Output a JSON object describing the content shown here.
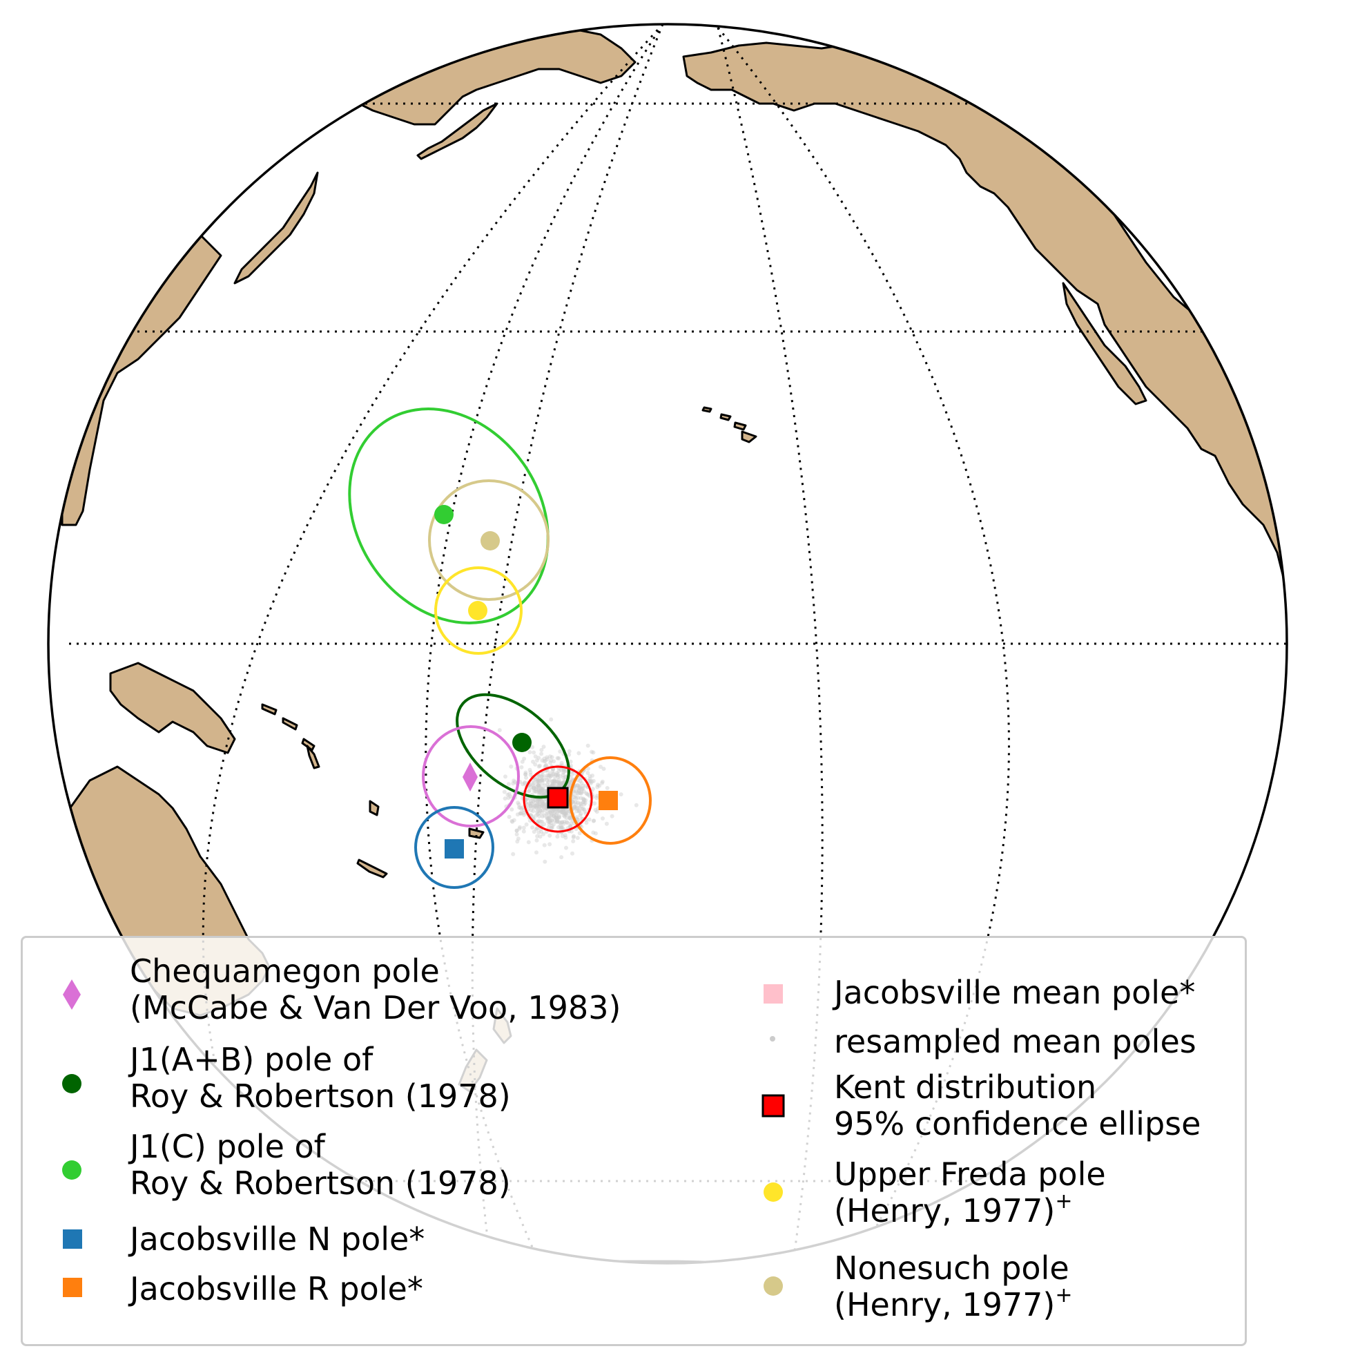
{
  "map": {
    "projection": "orthographic",
    "land_color": "#d2b48c",
    "coast_color": "#000000",
    "gridline_style": "dotted"
  },
  "poles": [
    {
      "name": "Chequamegon pole",
      "marker": "diamond",
      "color": "#da70d6",
      "lon": -158,
      "lat": -27,
      "a95": 8
    },
    {
      "name": "J1(A+B) pole",
      "marker": "circle",
      "color": "#006400",
      "lon": -153,
      "lat": -22
    },
    {
      "name": "J1(C) pole",
      "marker": "circle",
      "color": "#32cd32",
      "lon": -162,
      "lat": 9
    },
    {
      "name": "Jacobsville N pole",
      "marker": "square",
      "color": "#1f77b4",
      "lon": -159,
      "lat": -35,
      "a95": 7
    },
    {
      "name": "Jacobsville R pole",
      "marker": "square",
      "color": "#ff7f0e",
      "lon": -145,
      "lat": -29,
      "a95": 8
    },
    {
      "name": "Jacobsville mean pole",
      "marker": "square",
      "color": "#ffc0cb",
      "lon": -151,
      "lat": -29
    },
    {
      "name": "Kent mean pole",
      "marker": "square",
      "color": "#ff0000",
      "lon": -151,
      "lat": -29,
      "a95": 6
    },
    {
      "name": "Upper Freda pole",
      "marker": "circle",
      "color": "#ffe52a",
      "lon": -159,
      "lat": 2,
      "a95": 8
    },
    {
      "name": "Nonesuch pole",
      "marker": "circle",
      "color": "#d6c98a",
      "lon": -157,
      "lat": 7,
      "a95": 11
    }
  ],
  "legend": {
    "left": [
      {
        "marker": "diamond",
        "color": "#da70d6",
        "line1": "Chequamegon pole",
        "line2": "(McCabe & Van Der Voo, 1983)"
      },
      {
        "marker": "circle",
        "color": "#006400",
        "line1": "J1(A+B) pole of",
        "line2": "Roy & Robertson (1978)"
      },
      {
        "marker": "circle",
        "color": "#32cd32",
        "line1": "J1(C) pole of",
        "line2": "Roy & Robertson (1978)"
      },
      {
        "marker": "square",
        "color": "#1f77b4",
        "line1": "Jacobsville N pole*"
      },
      {
        "marker": "square",
        "color": "#ff7f0e",
        "line1": "Jacobsville R pole*"
      }
    ],
    "right": [
      {
        "marker": "square",
        "color": "#ffc0cb",
        "line1": "Jacobsville mean pole*"
      },
      {
        "marker": "dot",
        "color": "#cccccc",
        "line1": "resampled mean poles"
      },
      {
        "marker": "square-edged",
        "color": "#ff0000",
        "line1": "Kent distribution",
        "line2": "95% confidence ellipse"
      },
      {
        "marker": "circle",
        "color": "#ffe52a",
        "line1": "Upper Freda pole",
        "line2": "(Henry, 1977)",
        "sup": "+"
      },
      {
        "marker": "circle",
        "color": "#d6c98a",
        "line1": "Nonesuch pole",
        "line2": "(Henry, 1977)",
        "sup": "+"
      }
    ]
  }
}
